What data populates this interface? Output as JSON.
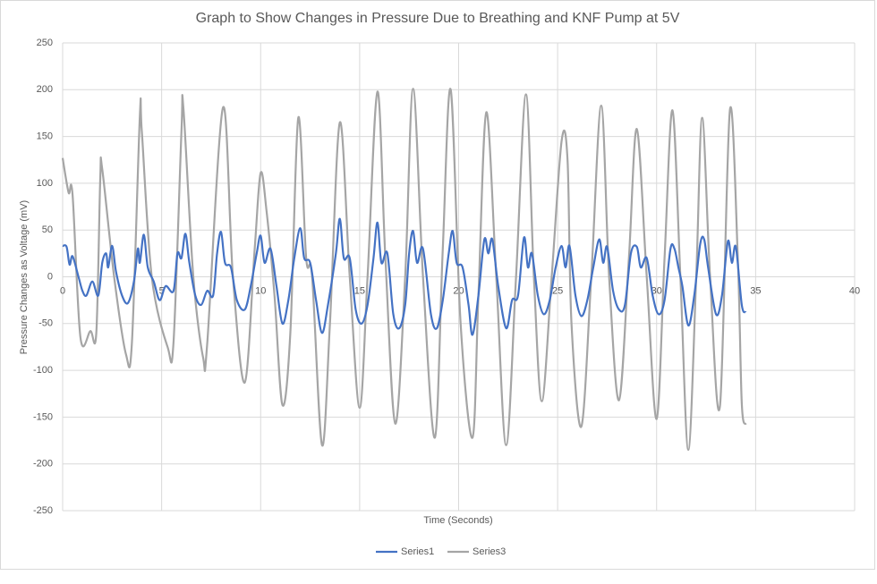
{
  "chart_data": {
    "type": "line",
    "title": "Graph to Show Changes in Pressure Due to Breathing and KNF Pump at 5V",
    "x_label": "Time (Seconds)",
    "y_label": "Pressure Changes as Voltage (mV)",
    "xlim": [
      0,
      40
    ],
    "xticks": [
      0,
      5,
      10,
      15,
      20,
      25,
      30,
      35,
      40
    ],
    "ylim": [
      -250,
      250
    ],
    "yticks": [
      -250,
      -200,
      -150,
      -100,
      -50,
      0,
      50,
      100,
      150,
      200,
      250
    ],
    "grid": true,
    "smooth": true,
    "legend": "bottom",
    "series": [
      {
        "name": "Series1",
        "color": "#4472c4",
        "x": [
          0,
          0.2,
          0.35,
          0.5,
          0.8,
          1.0,
          1.2,
          1.5,
          1.8,
          2.0,
          2.2,
          2.3,
          2.5,
          2.7,
          3.0,
          3.3,
          3.6,
          3.8,
          3.9,
          4.1,
          4.3,
          4.6,
          4.9,
          5.2,
          5.6,
          5.8,
          6.0,
          6.2,
          6.4,
          6.7,
          7.0,
          7.3,
          7.6,
          7.8,
          8.0,
          8.2,
          8.5,
          8.8,
          9.2,
          9.5,
          9.8,
          10.0,
          10.2,
          10.5,
          10.8,
          11.1,
          11.4,
          11.7,
          12.0,
          12.2,
          12.5,
          12.8,
          13.1,
          13.4,
          13.8,
          14.0,
          14.2,
          14.5,
          14.8,
          15.1,
          15.4,
          15.7,
          15.9,
          16.1,
          16.4,
          16.7,
          17.0,
          17.3,
          17.5,
          17.7,
          17.9,
          18.2,
          18.6,
          18.9,
          19.2,
          19.5,
          19.7,
          19.9,
          20.2,
          20.5,
          20.7,
          21.0,
          21.3,
          21.5,
          21.7,
          22.0,
          22.4,
          22.7,
          23.0,
          23.3,
          23.5,
          23.7,
          24.0,
          24.3,
          24.6,
          24.9,
          25.2,
          25.4,
          25.6,
          25.9,
          26.2,
          26.5,
          26.8,
          27.1,
          27.3,
          27.5,
          27.8,
          28.1,
          28.4,
          28.7,
          29.0,
          29.2,
          29.5,
          29.8,
          30.1,
          30.4,
          30.7,
          30.9,
          31.1,
          31.3,
          31.6,
          31.9,
          32.2,
          32.4,
          32.6,
          33.0,
          33.3,
          33.6,
          33.8,
          34.0,
          34.3,
          34.5
        ],
        "values": [
          33,
          32,
          13,
          22,
          0,
          -15,
          -20,
          -5,
          -20,
          15,
          25,
          10,
          33,
          5,
          -20,
          -28,
          -5,
          30,
          15,
          45,
          10,
          -5,
          -25,
          -10,
          -15,
          25,
          20,
          46,
          15,
          -20,
          -30,
          -15,
          -20,
          25,
          48,
          15,
          10,
          -25,
          -35,
          -10,
          25,
          44,
          15,
          30,
          -10,
          -50,
          -25,
          20,
          52,
          20,
          15,
          -25,
          -60,
          -30,
          25,
          62,
          20,
          20,
          -35,
          -50,
          -30,
          20,
          58,
          15,
          25,
          -40,
          -55,
          -30,
          25,
          49,
          15,
          30,
          -40,
          -55,
          -25,
          25,
          49,
          15,
          10,
          -30,
          -62,
          -20,
          40,
          25,
          40,
          -10,
          -55,
          -25,
          -20,
          42,
          10,
          25,
          -20,
          -40,
          -25,
          10,
          33,
          10,
          33,
          -20,
          -42,
          -25,
          10,
          40,
          15,
          32,
          -15,
          -35,
          -30,
          25,
          32,
          10,
          20,
          -20,
          -40,
          -25,
          30,
          30,
          10,
          -10,
          -52,
          -20,
          35,
          40,
          10,
          -40,
          -20,
          38,
          15,
          32,
          -30,
          -38
        ]
      },
      {
        "name": "Series3",
        "color": "#a5a5a5",
        "x": [
          0,
          0.3,
          0.5,
          0.9,
          1.4,
          1.7,
          1.9,
          2.0,
          2.6,
          3.2,
          3.5,
          3.9,
          4.0,
          4.5,
          5.3,
          5.6,
          6.0,
          6.1,
          6.6,
          7.1,
          7.3,
          8.1,
          8.6,
          9.2,
          9.7,
          10.0,
          10.3,
          10.7,
          11.1,
          11.5,
          11.9,
          12.3,
          12.6,
          13.1,
          13.5,
          14.0,
          14.5,
          15.0,
          15.4,
          15.9,
          16.3,
          16.8,
          17.3,
          17.7,
          18.2,
          18.8,
          19.2,
          19.6,
          20.1,
          20.7,
          21.0,
          21.4,
          21.9,
          22.4,
          22.9,
          23.4,
          23.8,
          24.2,
          24.7,
          25.2,
          25.5,
          25.7,
          26.2,
          26.7,
          27.2,
          27.6,
          28.1,
          28.6,
          29.0,
          29.5,
          30.0,
          30.4,
          30.8,
          31.2,
          31.6,
          32.0,
          32.3,
          32.7,
          33.2,
          33.7,
          34.1,
          34.3,
          34.5
        ],
        "values": [
          127,
          90,
          88,
          -65,
          -58,
          -60,
          105,
          115,
          0,
          -83,
          -70,
          172,
          155,
          0,
          -75,
          -70,
          155,
          180,
          0,
          -87,
          -72,
          181,
          0,
          -113,
          30,
          111,
          70,
          -20,
          -137,
          -60,
          170,
          20,
          0,
          -180,
          -50,
          165,
          0,
          -140,
          0,
          198,
          20,
          -157,
          0,
          201,
          0,
          -172,
          30,
          200,
          -50,
          -172,
          -20,
          176,
          0,
          -180,
          0,
          195,
          0,
          -133,
          0,
          145,
          125,
          -50,
          -160,
          0,
          183,
          0,
          -132,
          20,
          158,
          0,
          -152,
          20,
          178,
          0,
          -185,
          0,
          170,
          0,
          -138,
          178,
          20,
          -135,
          -158
        ]
      }
    ]
  }
}
